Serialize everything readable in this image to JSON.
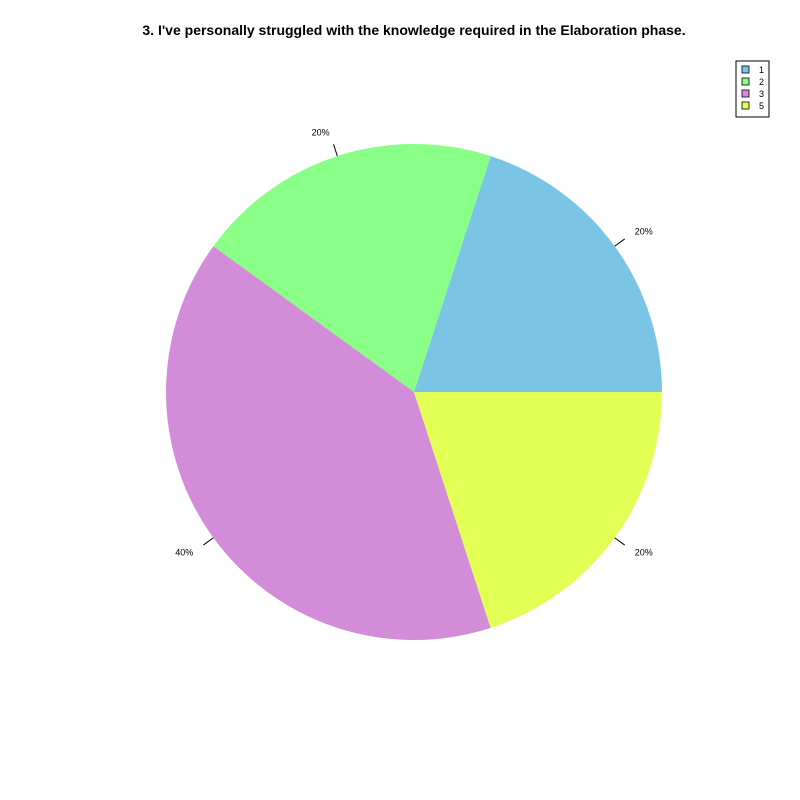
{
  "chart_data": {
    "type": "pie",
    "title": "3. I've personally struggled with the knowledge required in the Elaboration phase.",
    "slices": [
      {
        "label": "1",
        "value": 20,
        "pct_label": "20%",
        "color": "#7ac4e6"
      },
      {
        "label": "2",
        "value": 20,
        "pct_label": "20%",
        "color": "#8aff88"
      },
      {
        "label": "3",
        "value": 40,
        "pct_label": "40%",
        "color": "#d38cd7"
      },
      {
        "label": "5",
        "value": 20,
        "pct_label": "20%",
        "color": "#e2ff55"
      }
    ],
    "start": "3 o'clock",
    "direction": "counterclockwise",
    "legend": {
      "position": "top-right",
      "entries": [
        "1",
        "2",
        "3",
        "5"
      ]
    }
  }
}
